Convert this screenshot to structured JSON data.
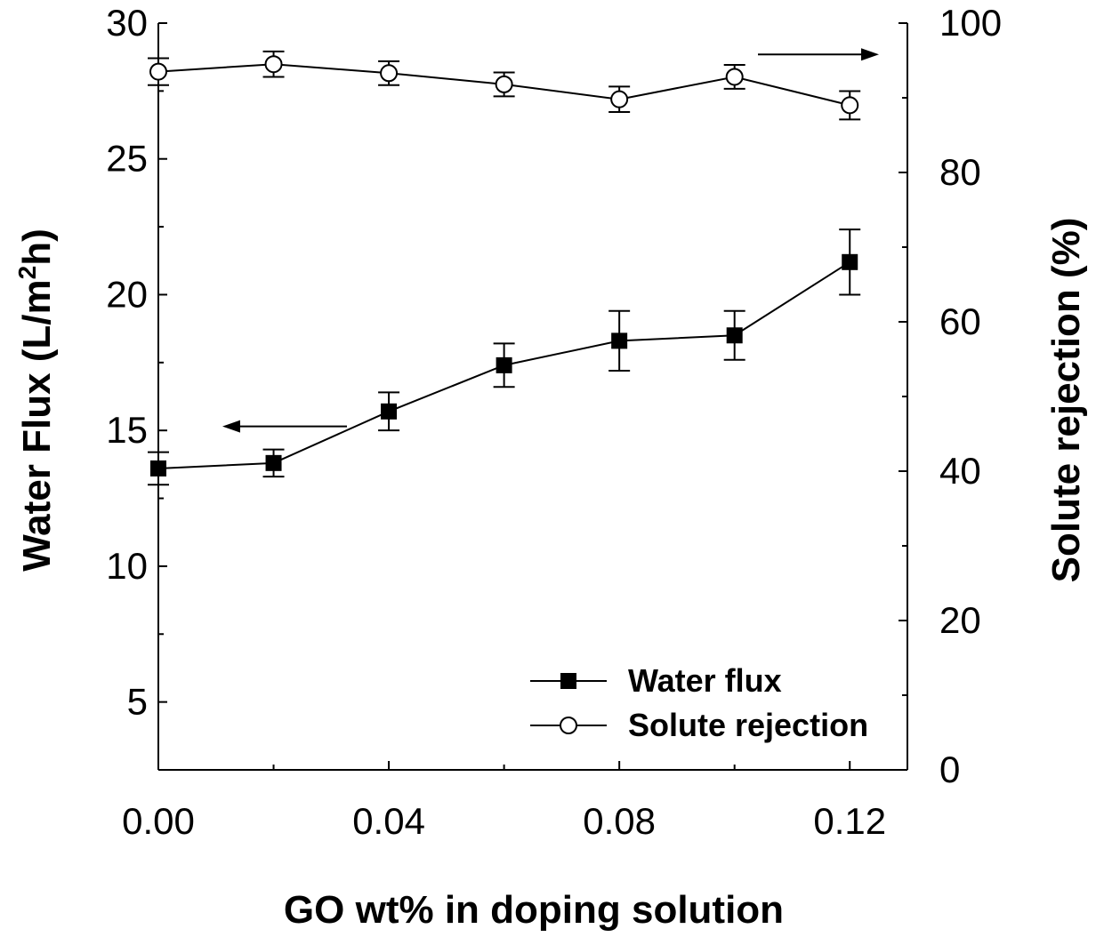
{
  "chart_data": {
    "type": "line",
    "title": "",
    "xlabel": "GO wt% in doping solution",
    "ylabel": "Water Flux (L/m²h)",
    "ylabel_base": "Water Flux (L/m",
    "ylabel_sup": "2",
    "ylabel_tail": "h)",
    "y2label": "Solute rejection (%)",
    "xlim": [
      0,
      0.13
    ],
    "ylim": [
      2.5,
      30
    ],
    "y2lim": [
      0,
      100
    ],
    "x_ticks": [
      "0.00",
      "0.04",
      "0.08",
      "0.12"
    ],
    "x_tick_values": [
      0,
      0.04,
      0.08,
      0.12
    ],
    "y_ticks": [
      "5",
      "10",
      "15",
      "20",
      "25",
      "30"
    ],
    "y_tick_values": [
      5,
      10,
      15,
      20,
      25,
      30
    ],
    "y2_ticks": [
      "0",
      "20",
      "40",
      "60",
      "80",
      "100"
    ],
    "y2_tick_values": [
      0,
      20,
      40,
      60,
      80,
      100
    ],
    "x": [
      0,
      0.02,
      0.04,
      0.06,
      0.08,
      0.1,
      0.12
    ],
    "series": [
      {
        "name": "Water flux",
        "axis": "left",
        "marker": "filled-square",
        "values": [
          13.6,
          13.8,
          15.7,
          17.4,
          18.3,
          18.5,
          21.2
        ],
        "errors": [
          0.6,
          0.5,
          0.7,
          0.8,
          1.1,
          0.9,
          1.2
        ]
      },
      {
        "name": "Solute rejection",
        "axis": "right",
        "marker": "open-circle",
        "values": [
          93.5,
          94.5,
          93.3,
          91.8,
          89.8,
          92.8,
          89.0
        ],
        "errors": [
          1.8,
          1.7,
          1.6,
          1.6,
          1.7,
          1.6,
          1.9
        ]
      }
    ],
    "annotations": [
      {
        "type": "arrow",
        "direction": "left",
        "points_to": "left-axis",
        "series": "Water flux"
      },
      {
        "type": "arrow",
        "direction": "right",
        "points_to": "right-axis",
        "series": "Solute rejection"
      }
    ],
    "legend": {
      "position": "bottom-right",
      "entries": [
        "Water flux",
        "Solute rejection"
      ]
    },
    "grid": false
  }
}
